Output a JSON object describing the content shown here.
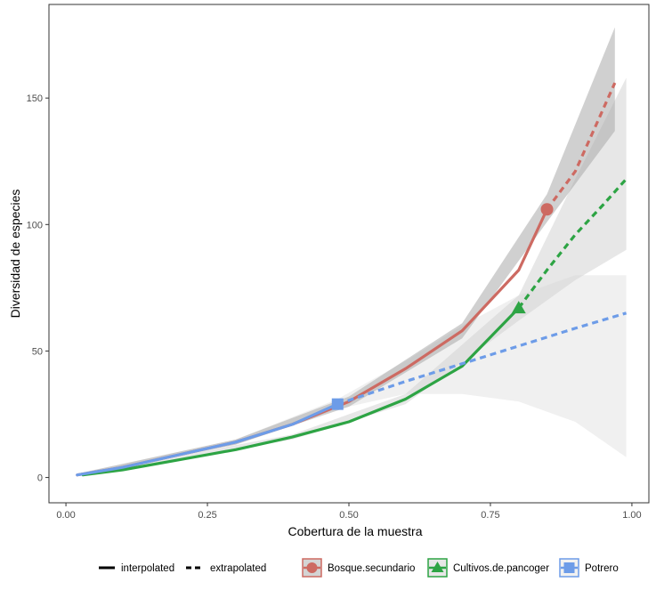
{
  "chart_data": {
    "type": "line",
    "title": "",
    "xlabel": "Cobertura de la muestra",
    "ylabel": "Diversidad de especies",
    "xlim": [
      -0.03,
      1.03
    ],
    "ylim": [
      -10,
      187
    ],
    "xticks": [
      0.0,
      0.25,
      0.5,
      0.75,
      1.0
    ],
    "xtick_labels": [
      "0.00",
      "0.25",
      "0.50",
      "0.75",
      "1.00"
    ],
    "yticks": [
      0,
      50,
      100,
      150
    ],
    "ytick_labels": [
      "0",
      "50",
      "100",
      "150"
    ],
    "grid": false,
    "legend_position": "bottom",
    "linetype_legend": [
      "interpolated",
      "extrapolated"
    ],
    "series": [
      {
        "name": "Bosque.secundario",
        "color": "#CD6A62",
        "marker": "circle",
        "interpolated": [
          [
            0.02,
            1
          ],
          [
            0.1,
            4
          ],
          [
            0.2,
            9
          ],
          [
            0.3,
            14
          ],
          [
            0.4,
            21
          ],
          [
            0.5,
            30
          ],
          [
            0.6,
            43
          ],
          [
            0.7,
            58
          ],
          [
            0.8,
            82
          ],
          [
            0.85,
            106
          ]
        ],
        "extrapolated": [
          [
            0.85,
            106
          ],
          [
            0.9,
            121
          ],
          [
            0.93,
            136
          ],
          [
            0.97,
            156
          ]
        ],
        "observed": [
          0.85,
          106
        ],
        "ci_lower": [
          [
            0.02,
            0.5
          ],
          [
            0.3,
            13
          ],
          [
            0.5,
            28
          ],
          [
            0.7,
            55
          ],
          [
            0.85,
            101
          ],
          [
            0.97,
            137
          ]
        ],
        "ci_upper": [
          [
            0.02,
            1.5
          ],
          [
            0.3,
            15
          ],
          [
            0.5,
            32
          ],
          [
            0.7,
            61
          ],
          [
            0.85,
            112
          ],
          [
            0.97,
            178
          ]
        ]
      },
      {
        "name": "Cultivos.de.pancoger",
        "color": "#2DA444",
        "marker": "triangle",
        "interpolated": [
          [
            0.03,
            1
          ],
          [
            0.1,
            3
          ],
          [
            0.2,
            7
          ],
          [
            0.3,
            11
          ],
          [
            0.4,
            16
          ],
          [
            0.5,
            22
          ],
          [
            0.6,
            31
          ],
          [
            0.7,
            44
          ],
          [
            0.8,
            67
          ]
        ],
        "extrapolated": [
          [
            0.8,
            67
          ],
          [
            0.85,
            82
          ],
          [
            0.9,
            96
          ],
          [
            0.95,
            108
          ],
          [
            0.99,
            118
          ]
        ],
        "observed": [
          0.8,
          67
        ],
        "ci_lower": [
          [
            0.03,
            0.5
          ],
          [
            0.4,
            15
          ],
          [
            0.6,
            29
          ],
          [
            0.8,
            62
          ],
          [
            0.9,
            78
          ],
          [
            0.99,
            90
          ]
        ],
        "ci_upper": [
          [
            0.03,
            1.5
          ],
          [
            0.4,
            17
          ],
          [
            0.6,
            33
          ],
          [
            0.8,
            72
          ],
          [
            0.9,
            118
          ],
          [
            0.99,
            158
          ]
        ]
      },
      {
        "name": "Potrero",
        "color": "#6D9CE8",
        "marker": "square",
        "interpolated": [
          [
            0.02,
            1
          ],
          [
            0.1,
            4
          ],
          [
            0.2,
            9
          ],
          [
            0.3,
            14
          ],
          [
            0.4,
            21
          ],
          [
            0.48,
            29
          ]
        ],
        "extrapolated": [
          [
            0.48,
            29
          ],
          [
            0.6,
            38
          ],
          [
            0.7,
            45
          ],
          [
            0.8,
            52
          ],
          [
            0.9,
            59
          ],
          [
            0.99,
            65
          ]
        ],
        "observed": [
          0.48,
          29
        ],
        "ci_lower": [
          [
            0.02,
            0.5
          ],
          [
            0.3,
            13
          ],
          [
            0.48,
            27
          ],
          [
            0.6,
            33
          ],
          [
            0.7,
            33
          ],
          [
            0.8,
            30
          ],
          [
            0.9,
            22
          ],
          [
            0.99,
            8
          ]
        ],
        "ci_upper": [
          [
            0.02,
            1.5
          ],
          [
            0.3,
            15
          ],
          [
            0.48,
            31
          ],
          [
            0.6,
            46
          ],
          [
            0.7,
            60
          ],
          [
            0.8,
            72
          ],
          [
            0.9,
            80
          ],
          [
            0.99,
            80
          ]
        ]
      }
    ]
  }
}
